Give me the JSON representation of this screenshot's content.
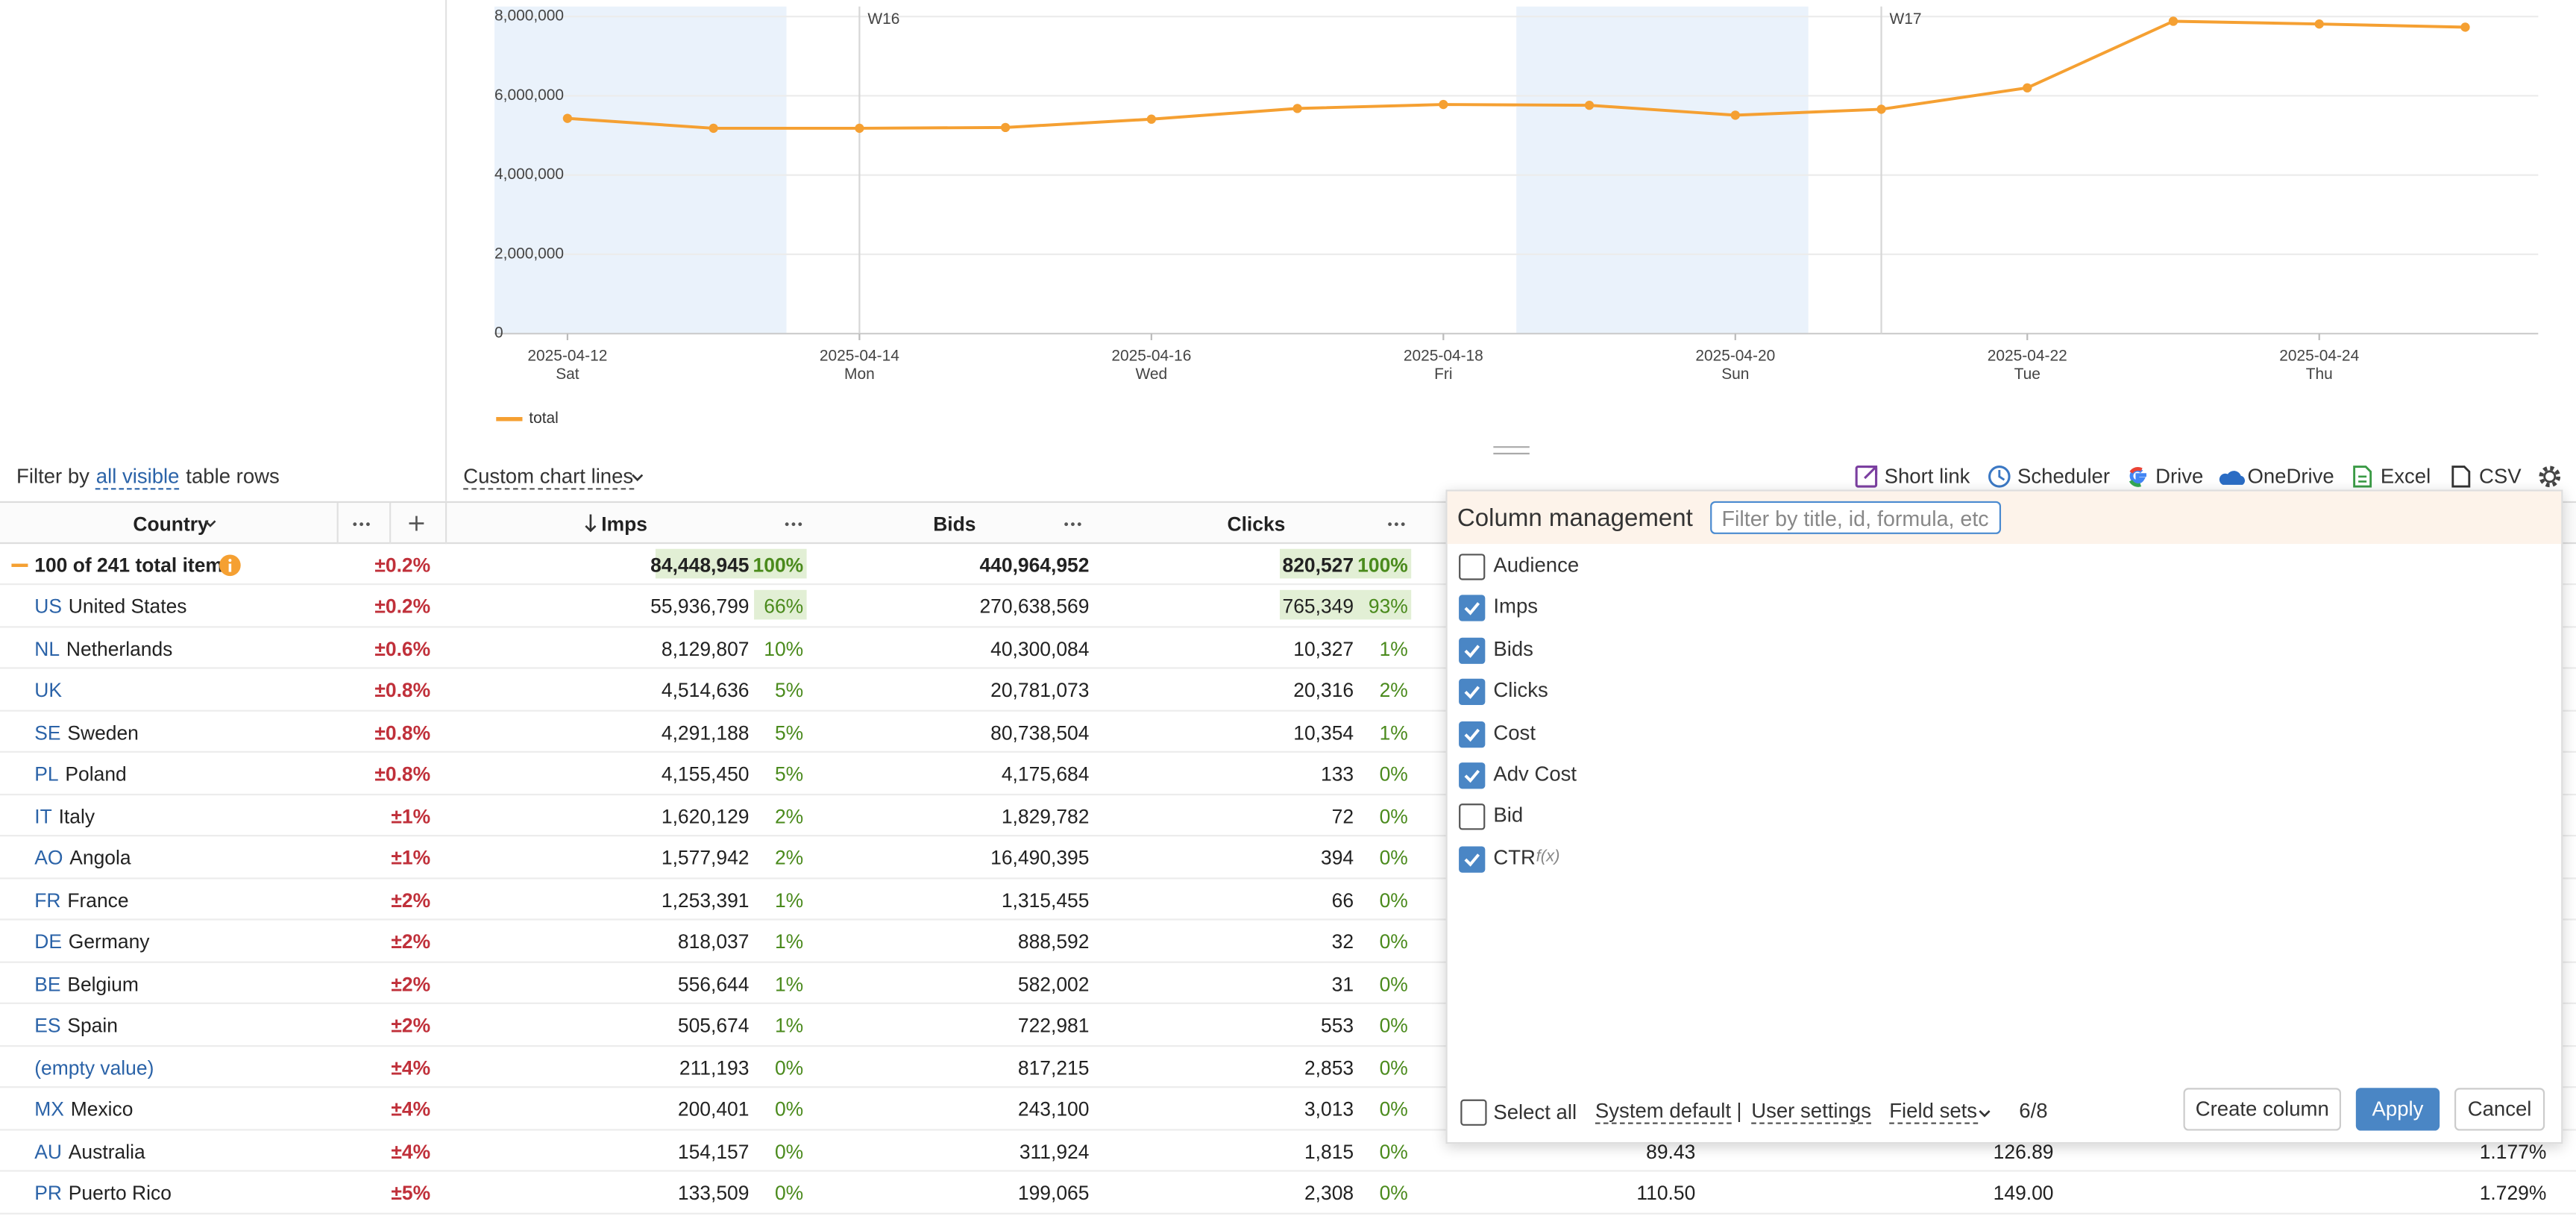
{
  "chart_data": {
    "type": "line",
    "x": [
      "2025-04-12",
      "2025-04-13",
      "2025-04-14",
      "2025-04-15",
      "2025-04-16",
      "2025-04-17",
      "2025-04-18",
      "2025-04-19",
      "2025-04-20",
      "2025-04-21",
      "2025-04-22",
      "2025-04-23",
      "2025-04-24",
      "2025-04-25"
    ],
    "series": [
      {
        "name": "total",
        "color": "#f5a032",
        "values": [
          5430000,
          5180000,
          5180000,
          5200000,
          5410000,
          5680000,
          5780000,
          5760000,
          5510000,
          5660000,
          6200000,
          7880000,
          7810000,
          7730000
        ]
      }
    ],
    "xlim": [
      "2025-04-11T12:00",
      "2025-04-25T12:00"
    ],
    "xticks": [
      "2025-04-12",
      "2025-04-14",
      "2025-04-16",
      "2025-04-18",
      "2025-04-20",
      "2025-04-22",
      "2025-04-24"
    ],
    "xtick_weekdays": [
      "Sat",
      "Mon",
      "Wed",
      "Fri",
      "Sun",
      "Tue",
      "Thu"
    ],
    "ylim": [
      0,
      8250000
    ],
    "yticks": [
      0,
      {
        "value": 2000000,
        "label": "2,000,000"
      },
      {
        "value": 4000000,
        "label": "4,000,000"
      },
      {
        "value": 6000000,
        "label": "6,000,000"
      },
      {
        "value": 8000000,
        "label": "8,000,000"
      }
    ],
    "grid": true,
    "weekend_color": "#eaf2fb",
    "annotations": [
      {
        "x": "2025-04-14",
        "label": "W16"
      },
      {
        "x": "2025-04-21",
        "label": "W17"
      }
    ]
  },
  "filter": {
    "prefix": "Filter by",
    "link": "all visible",
    "suffix": "table rows"
  },
  "chart_lines_menu": "Custom chart lines",
  "toolbar": [
    "Short link",
    "Scheduler",
    "Drive",
    "OneDrive",
    "Excel",
    "CSV"
  ],
  "table": {
    "headers": {
      "country": "Country",
      "imps": "Imps",
      "bids": "Bids",
      "clicks": "Clicks"
    },
    "rows": [
      {
        "label": "100 of 241 total items",
        "error": "±0.2%",
        "imps": "84,448,945",
        "imps_share": "100%",
        "bids": "440,964,952",
        "clicks": "820,527",
        "clicks_share": "100%",
        "highlight": [
          "imps",
          "clicks"
        ]
      },
      {
        "code": "US",
        "name": "United States",
        "error": "±0.2%",
        "imps": "55,936,799",
        "imps_share": "66%",
        "bids": "270,638,569",
        "clicks": "765,349",
        "clicks_share": "93%",
        "highlight": [
          "imps_share",
          "clicks"
        ]
      },
      {
        "code": "NL",
        "name": "Netherlands",
        "error": "±0.6%",
        "imps": "8,129,807",
        "imps_share": "10%",
        "bids": "40,300,084",
        "clicks": "10,327",
        "clicks_share": "1%"
      },
      {
        "code": "UK",
        "error": "±0.8%",
        "imps": "4,514,636",
        "imps_share": "5%",
        "bids": "20,781,073",
        "clicks": "20,316",
        "clicks_share": "2%"
      },
      {
        "code": "SE",
        "name": "Sweden",
        "error": "±0.8%",
        "imps": "4,291,188",
        "imps_share": "5%",
        "bids": "80,738,504",
        "clicks": "10,354",
        "clicks_share": "1%"
      },
      {
        "code": "PL",
        "name": "Poland",
        "error": "±0.8%",
        "imps": "4,155,450",
        "imps_share": "5%",
        "bids": "4,175,684",
        "clicks": "133",
        "clicks_share": "0%"
      },
      {
        "code": "IT",
        "name": "Italy",
        "error": "±1%",
        "imps": "1,620,129",
        "imps_share": "2%",
        "bids": "1,829,782",
        "clicks": "72",
        "clicks_share": "0%"
      },
      {
        "code": "AO",
        "name": "Angola",
        "error": "±1%",
        "imps": "1,577,942",
        "imps_share": "2%",
        "bids": "16,490,395",
        "clicks": "394",
        "clicks_share": "0%"
      },
      {
        "code": "FR",
        "name": "France",
        "error": "±2%",
        "imps": "1,253,391",
        "imps_share": "1%",
        "bids": "1,315,455",
        "clicks": "66",
        "clicks_share": "0%"
      },
      {
        "code": "DE",
        "name": "Germany",
        "error": "±2%",
        "imps": "818,037",
        "imps_share": "1%",
        "bids": "888,592",
        "clicks": "32",
        "clicks_share": "0%"
      },
      {
        "code": "BE",
        "name": "Belgium",
        "error": "±2%",
        "imps": "556,644",
        "imps_share": "1%",
        "bids": "582,002",
        "clicks": "31",
        "clicks_share": "0%"
      },
      {
        "code": "ES",
        "name": "Spain",
        "error": "±2%",
        "imps": "505,674",
        "imps_share": "1%",
        "bids": "722,981",
        "clicks": "553",
        "clicks_share": "0%"
      },
      {
        "code": "(empty value)",
        "error": "±4%",
        "imps": "211,193",
        "imps_share": "0%",
        "bids": "817,215",
        "clicks": "2,853",
        "clicks_share": "0%"
      },
      {
        "code": "MX",
        "name": "Mexico",
        "error": "±4%",
        "imps": "200,401",
        "imps_share": "0%",
        "bids": "243,100",
        "clicks": "3,013",
        "clicks_share": "0%"
      },
      {
        "code": "AU",
        "name": "Australia",
        "error": "±4%",
        "imps": "154,157",
        "imps_share": "0%",
        "bids": "311,924",
        "clicks": "1,815",
        "clicks_share": "0%",
        "extra": [
          "89.43",
          "126.89",
          "1.177%"
        ]
      },
      {
        "code": "PR",
        "name": "Puerto Rico",
        "error": "±5%",
        "imps": "133,509",
        "imps_share": "0%",
        "bids": "199,065",
        "clicks": "2,308",
        "clicks_share": "0%",
        "extra": [
          "110.50",
          "149.00",
          "1.729%"
        ]
      }
    ]
  },
  "column_panel": {
    "title": "Column management",
    "search_placeholder": "Filter by title, id, formula, etc",
    "columns": [
      {
        "label": "Audience",
        "checked": false
      },
      {
        "label": "Imps",
        "checked": true
      },
      {
        "label": "Bids",
        "checked": true
      },
      {
        "label": "Clicks",
        "checked": true
      },
      {
        "label": "Cost",
        "checked": true
      },
      {
        "label": "Adv Cost",
        "checked": true
      },
      {
        "label": "Bid",
        "checked": false
      },
      {
        "label": "CTR",
        "checked": true,
        "formula": "f(x)"
      }
    ],
    "select_all": "Select all",
    "system_default": "System default",
    "separator": "|",
    "user_settings": "User settings",
    "field_sets": "Field sets",
    "count": "6/8",
    "buttons": [
      "Create column",
      "Apply",
      "Cancel"
    ]
  }
}
